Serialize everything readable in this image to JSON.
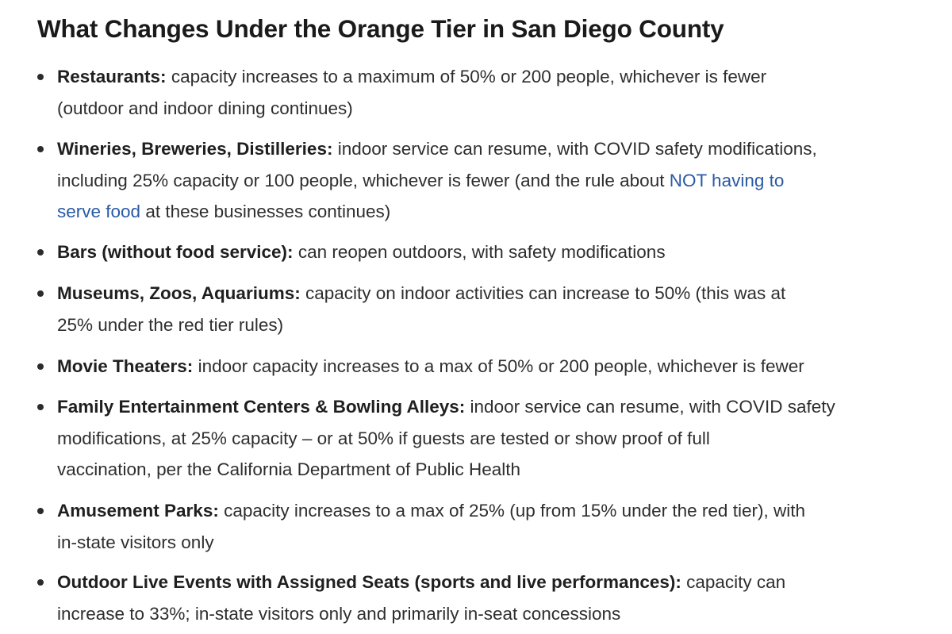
{
  "article": {
    "heading": "What Changes Under the Orange Tier in San Diego County",
    "items": [
      {
        "term": "Restaurants:",
        "line1": "capacity increases to a maximum of 50% or 200 people, whichever is fewer",
        "line2": "(outdoor and indoor dining continues)"
      },
      {
        "term": "Wineries, Breweries, Distilleries:",
        "line1": "indoor service can resume, with COVID safety modifications,",
        "line2_pre": "including 25% capacity or 100 people, whichever is fewer (and the rule about ",
        "link_part1": "NOT having to",
        "link_part2": "serve food",
        "line3_post": " at these businesses continues)"
      },
      {
        "term": "Bars (without food service):",
        "line1": "can reopen outdoors, with safety modifications"
      },
      {
        "term": "Museums, Zoos, Aquariums:",
        "line1": "capacity on indoor activities can increase to 50% (this was at",
        "line2": "25% under the red tier rules)"
      },
      {
        "term": "Movie Theaters:",
        "line1": "indoor capacity increases to a max of 50% or 200 people, whichever is fewer"
      },
      {
        "term": "Family Entertainment Centers & Bowling Alleys:",
        "line1": "indoor service can resume, with COVID safety",
        "line2": "modifications, at 25% capacity – or at 50% if guests are tested or show proof of full",
        "line3": "vaccination, per the California Department of Public Health"
      },
      {
        "term": "Amusement Parks:",
        "line1": "capacity increases to a max of 25% (up from 15% under the red tier), with",
        "line2": "in-state visitors only"
      },
      {
        "term": "Outdoor Live Events with Assigned Seats (sports and live performances):",
        "line1": "capacity can",
        "line2": "increase to 33%; in-state visitors only and primarily in-seat concessions"
      }
    ]
  }
}
